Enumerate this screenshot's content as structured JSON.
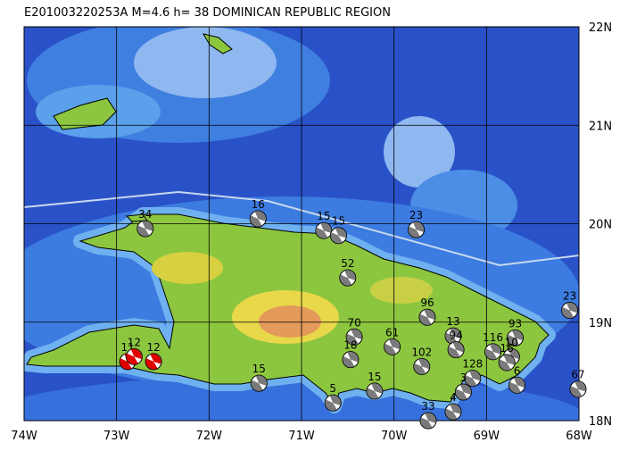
{
  "header": {
    "title": "E201003220253A  M=4.6  h= 38  DOMINICAN REPUBLIC REGION"
  },
  "map": {
    "lonlim": [
      -74,
      -68
    ],
    "latlim": [
      18,
      22
    ],
    "lonticks": [
      {
        "value": -74,
        "label": "74W"
      },
      {
        "value": -73,
        "label": "73W"
      },
      {
        "value": -72,
        "label": "72W"
      },
      {
        "value": -71,
        "label": "71W"
      },
      {
        "value": -70,
        "label": "70W"
      },
      {
        "value": -69,
        "label": "69W"
      },
      {
        "value": -68,
        "label": "68W"
      }
    ],
    "latticks": [
      {
        "value": 18,
        "label": "18N"
      },
      {
        "value": 19,
        "label": "19N"
      },
      {
        "value": 20,
        "label": "20N"
      },
      {
        "value": 21,
        "label": "21N"
      },
      {
        "value": 22,
        "label": "22N"
      }
    ],
    "events": [
      {
        "label": "34",
        "lon": -72.69,
        "lat": 19.95,
        "color": "#7a7a7a"
      },
      {
        "label": "16",
        "lon": -71.47,
        "lat": 20.05,
        "color": "#7a7a7a"
      },
      {
        "label": "15",
        "lon": -70.76,
        "lat": 19.93,
        "color": "#7a7a7a"
      },
      {
        "label": "15",
        "lon": -70.6,
        "lat": 19.88,
        "color": "#7a7a7a"
      },
      {
        "label": "23",
        "lon": -69.76,
        "lat": 19.94,
        "color": "#7a7a7a"
      },
      {
        "label": "52",
        "lon": -70.5,
        "lat": 19.45,
        "color": "#7a7a7a"
      },
      {
        "label": "96",
        "lon": -69.64,
        "lat": 19.05,
        "color": "#7a7a7a"
      },
      {
        "label": "13",
        "lon": -69.36,
        "lat": 18.86,
        "color": "#7a7a7a"
      },
      {
        "label": "94",
        "lon": -69.33,
        "lat": 18.72,
        "color": "#7a7a7a"
      },
      {
        "label": "70",
        "lon": -70.43,
        "lat": 18.85,
        "color": "#7a7a7a"
      },
      {
        "label": "61",
        "lon": -70.02,
        "lat": 18.75,
        "color": "#7a7a7a"
      },
      {
        "label": "18",
        "lon": -70.47,
        "lat": 18.62,
        "color": "#7a7a7a"
      },
      {
        "label": "102",
        "lon": -69.7,
        "lat": 18.55,
        "color": "#7a7a7a"
      },
      {
        "label": "93",
        "lon": -68.69,
        "lat": 18.84,
        "color": "#7a7a7a"
      },
      {
        "label": "116",
        "lon": -68.93,
        "lat": 18.7,
        "color": "#7a7a7a"
      },
      {
        "label": "10",
        "lon": -68.73,
        "lat": 18.65,
        "color": "#7a7a7a"
      },
      {
        "label": "16",
        "lon": -68.78,
        "lat": 18.59,
        "color": "#7a7a7a"
      },
      {
        "label": "6",
        "lon": -68.67,
        "lat": 18.36,
        "color": "#7a7a7a"
      },
      {
        "label": "128",
        "lon": -69.15,
        "lat": 18.43,
        "color": "#7a7a7a"
      },
      {
        "label": "3",
        "lon": -69.25,
        "lat": 18.29,
        "color": "#7a7a7a"
      },
      {
        "label": "4",
        "lon": -69.36,
        "lat": 18.09,
        "color": "#7a7a7a"
      },
      {
        "label": "33",
        "lon": -69.63,
        "lat": 18.0,
        "color": "#7a7a7a"
      },
      {
        "label": "15",
        "lon": -70.21,
        "lat": 18.3,
        "color": "#7a7a7a"
      },
      {
        "label": "5",
        "lon": -70.66,
        "lat": 18.18,
        "color": "#7a7a7a"
      },
      {
        "label": "15",
        "lon": -71.46,
        "lat": 18.38,
        "color": "#7a7a7a"
      },
      {
        "label": "23",
        "lon": -68.1,
        "lat": 19.12,
        "color": "#7a7a7a"
      },
      {
        "label": "67",
        "lon": -68.01,
        "lat": 18.32,
        "color": "#7a7a7a"
      },
      {
        "label": "11",
        "lon": -72.88,
        "lat": 18.6,
        "color": "#e00000"
      },
      {
        "label": "12",
        "lon": -72.81,
        "lat": 18.65,
        "color": "#e00000"
      },
      {
        "label": "12",
        "lon": -72.6,
        "lat": 18.6,
        "color": "#e00000"
      }
    ]
  }
}
